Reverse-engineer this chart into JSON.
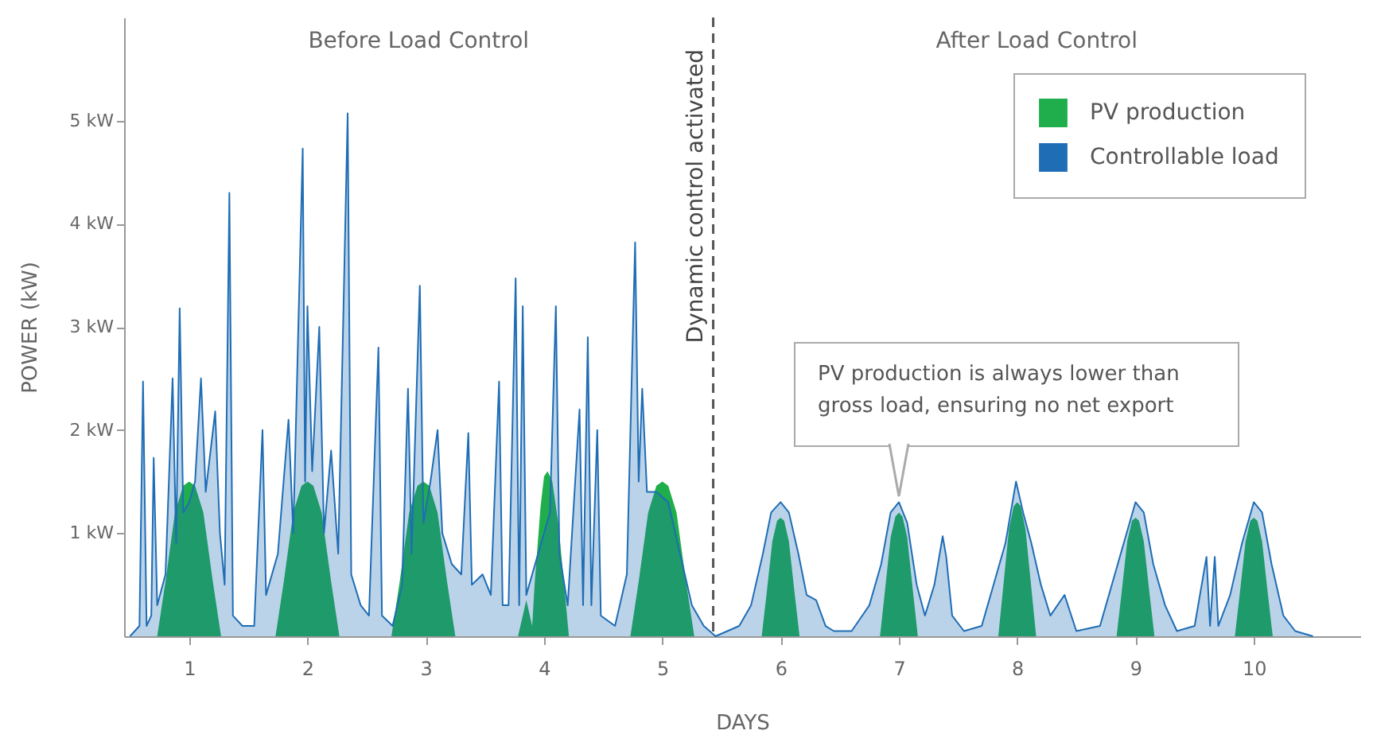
{
  "chart_data": {
    "type": "area",
    "xlabel": "DAYS",
    "ylabel": "POWER (kW)",
    "xlim": [
      0.45,
      10.9
    ],
    "xticks": [
      1,
      2,
      3,
      4,
      5,
      6,
      7,
      8,
      9,
      10
    ],
    "ylim": [
      0,
      6
    ],
    "yticks": [
      {
        "value": 1,
        "label": "1 kW"
      },
      {
        "value": 2,
        "label": "2 kW"
      },
      {
        "value": 3,
        "label": "3 kW"
      },
      {
        "value": 4,
        "label": "4 kW"
      },
      {
        "value": 5,
        "label": "5 kW"
      }
    ],
    "grid": false,
    "legend": "top right",
    "annotations": [
      "Before Load Control",
      "After Load Control",
      {
        "text": "PV production is always lower than gross load, ensuring no net export",
        "x": 7,
        "y": 1.3
      }
    ],
    "ref_lines": [
      {
        "axis": "x",
        "value": 5.43,
        "label": "Dynamic control activated",
        "line_style": "dashed",
        "color": "#555555"
      }
    ],
    "series": [
      {
        "name": "PV production",
        "color": "#1fae4b",
        "x": [
          0.73,
          0.8,
          0.88,
          0.95,
          1,
          1.05,
          1.12,
          1.2,
          1.27,
          1.73,
          1.8,
          1.88,
          1.95,
          2,
          2.05,
          2.12,
          2.2,
          2.27,
          2.71,
          2.78,
          2.86,
          2.93,
          2.98,
          3.03,
          3.1,
          3.18,
          3.25,
          3.78,
          3.85,
          3.9,
          3.92,
          3.97,
          4.0,
          4.03,
          4.07,
          4.12,
          4.17,
          4.21,
          4.73,
          4.8,
          4.88,
          4.95,
          5,
          5.05,
          5.12,
          5.2,
          5.27,
          5.84,
          5.88,
          5.93,
          5.97,
          6,
          6.03,
          6.07,
          6.12,
          6.16,
          6.84,
          6.88,
          6.93,
          6.97,
          7,
          7.03,
          7.07,
          7.12,
          7.16,
          7.84,
          7.88,
          7.93,
          7.97,
          8,
          8.03,
          8.07,
          8.12,
          8.16,
          8.84,
          8.88,
          8.93,
          8.97,
          9,
          9.03,
          9.07,
          9.12,
          9.16,
          9.84,
          9.88,
          9.93,
          9.97,
          10,
          10.03,
          10.07,
          10.12,
          10.16
        ],
        "values": [
          0,
          0.53,
          1.2,
          1.46,
          1.5,
          1.46,
          1.2,
          0.53,
          0,
          0,
          0.53,
          1.2,
          1.46,
          1.5,
          1.46,
          1.2,
          0.53,
          0,
          0,
          0.53,
          1.2,
          1.46,
          1.5,
          1.46,
          1.2,
          0.53,
          0,
          0,
          0.35,
          0.1,
          0.5,
          1.25,
          1.55,
          1.6,
          1.5,
          1.1,
          0.5,
          0,
          0,
          0.53,
          1.2,
          1.46,
          1.5,
          1.46,
          1.2,
          0.53,
          0,
          0,
          0.4,
          0.92,
          1.12,
          1.15,
          1.12,
          0.92,
          0.4,
          0,
          0,
          0.42,
          0.96,
          1.16,
          1.2,
          1.16,
          0.96,
          0.42,
          0,
          0,
          0.46,
          1.04,
          1.26,
          1.3,
          1.26,
          1.04,
          0.46,
          0,
          0,
          0.4,
          0.92,
          1.12,
          1.15,
          1.12,
          0.92,
          0.4,
          0,
          0,
          0.4,
          0.92,
          1.12,
          1.15,
          1.12,
          0.92,
          0.4,
          0
        ]
      },
      {
        "name": "Controllable load",
        "color": "#1f6db5",
        "x": [
          0.5,
          0.58,
          0.61,
          0.64,
          0.68,
          0.7,
          0.73,
          0.8,
          0.86,
          0.89,
          0.92,
          0.95,
          1.0,
          1.05,
          1.1,
          1.14,
          1.22,
          1.26,
          1.3,
          1.34,
          1.37,
          1.45,
          1.55,
          1.62,
          1.65,
          1.75,
          1.84,
          1.88,
          1.96,
          1.98,
          2.0,
          2.04,
          2.1,
          2.14,
          2.2,
          2.26,
          2.34,
          2.37,
          2.45,
          2.52,
          2.6,
          2.63,
          2.72,
          2.8,
          2.85,
          2.88,
          2.95,
          2.98,
          3.04,
          3.1,
          3.14,
          3.22,
          3.3,
          3.36,
          3.39,
          3.48,
          3.55,
          3.62,
          3.65,
          3.7,
          3.76,
          3.79,
          3.82,
          3.85,
          3.95,
          4.05,
          4.1,
          4.13,
          4.2,
          4.3,
          4.33,
          4.37,
          4.4,
          4.45,
          4.48,
          4.6,
          4.7,
          4.77,
          4.8,
          4.83,
          4.87,
          4.95,
          5.05,
          5.15,
          5.25,
          5.35,
          5.45,
          5.65,
          5.75,
          5.85,
          5.92,
          6.0,
          6.07,
          6.15,
          6.22,
          6.3,
          6.38,
          6.45,
          6.6,
          6.75,
          6.85,
          6.93,
          7.0,
          7.07,
          7.15,
          7.22,
          7.3,
          7.37,
          7.4,
          7.45,
          7.55,
          7.7,
          7.8,
          7.9,
          7.99,
          8.05,
          8.12,
          8.2,
          8.28,
          8.4,
          8.5,
          8.7,
          8.8,
          8.9,
          9.0,
          9.07,
          9.15,
          9.25,
          9.35,
          9.5,
          9.6,
          9.63,
          9.67,
          9.7,
          9.8,
          9.9,
          10.0,
          10.07,
          10.15,
          10.25,
          10.35,
          10.5
        ],
        "values": [
          0,
          0.1,
          2.47,
          0.1,
          0.2,
          1.73,
          0.3,
          0.6,
          2.5,
          0.9,
          3.18,
          1.2,
          1.3,
          1.5,
          2.5,
          1.4,
          2.18,
          1.0,
          0.5,
          4.3,
          0.2,
          0.1,
          0.1,
          2.0,
          0.4,
          0.8,
          2.1,
          1.0,
          4.73,
          1.5,
          3.2,
          1.6,
          3.0,
          1.0,
          1.8,
          0.8,
          5.07,
          0.6,
          0.3,
          0.2,
          2.8,
          0.2,
          0.1,
          0.5,
          2.4,
          0.8,
          3.4,
          1.1,
          1.5,
          2.0,
          1.0,
          0.7,
          0.6,
          1.97,
          0.5,
          0.6,
          0.4,
          2.47,
          0.3,
          0.3,
          3.47,
          0.3,
          3.2,
          0.4,
          0.8,
          1.2,
          3.2,
          0.8,
          0.3,
          2.2,
          0.3,
          2.9,
          0.3,
          2.0,
          0.2,
          0.1,
          0.6,
          3.82,
          1.5,
          2.4,
          1.4,
          1.4,
          1.3,
          0.8,
          0.3,
          0.1,
          0,
          0.1,
          0.3,
          0.8,
          1.2,
          1.3,
          1.2,
          0.8,
          0.4,
          0.35,
          0.1,
          0.05,
          0.05,
          0.3,
          0.7,
          1.2,
          1.3,
          1.1,
          0.5,
          0.2,
          0.5,
          0.97,
          0.77,
          0.2,
          0.05,
          0.1,
          0.5,
          0.9,
          1.5,
          1.2,
          0.9,
          0.5,
          0.2,
          0.4,
          0.05,
          0.1,
          0.5,
          0.9,
          1.3,
          1.2,
          0.7,
          0.3,
          0.05,
          0.1,
          0.77,
          0.1,
          0.77,
          0.1,
          0.4,
          0.9,
          1.3,
          1.2,
          0.7,
          0.2,
          0.05,
          0
        ]
      }
    ]
  }
}
